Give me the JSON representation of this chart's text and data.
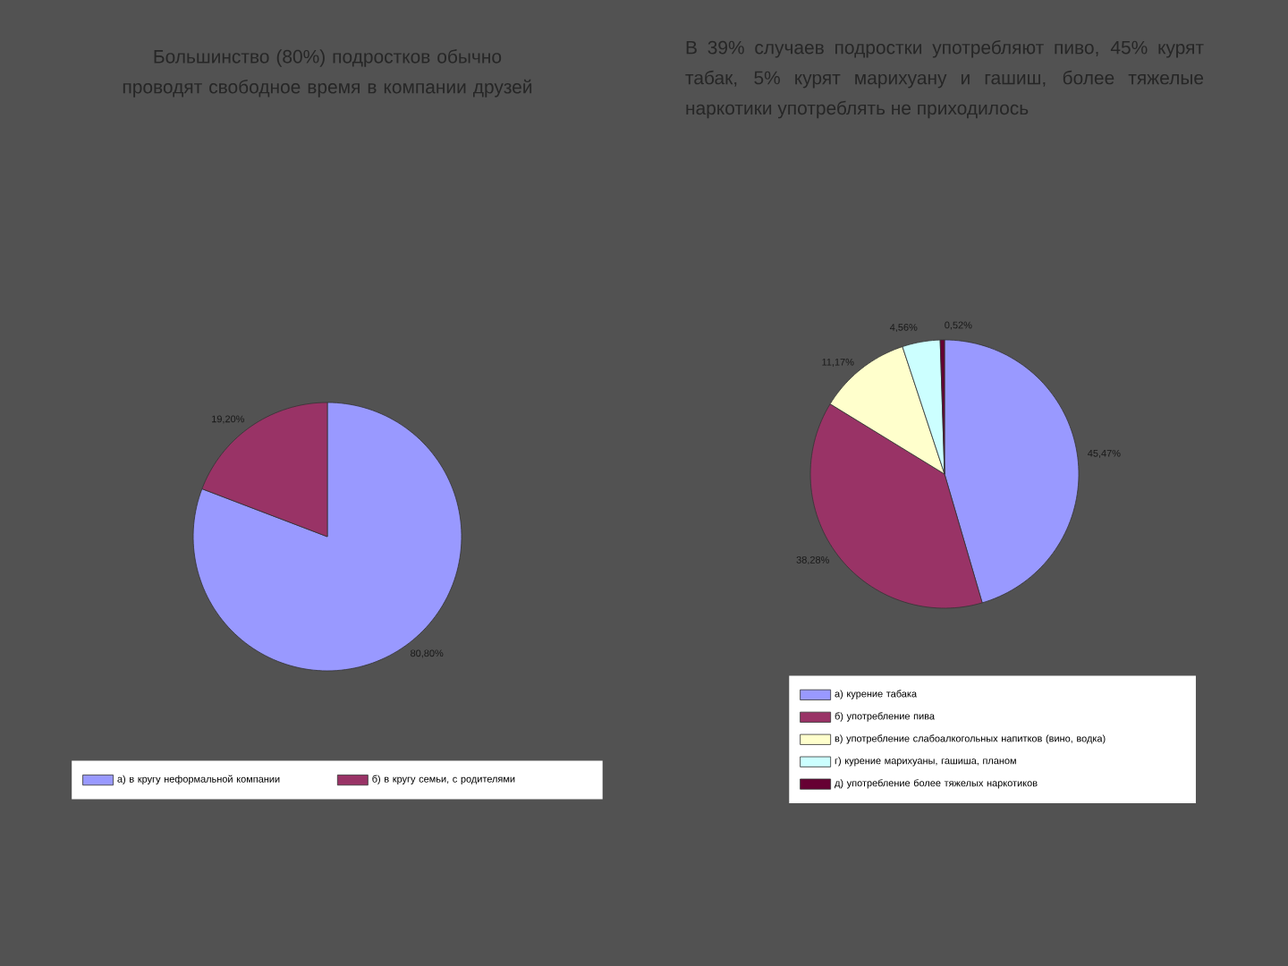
{
  "chart_data": [
    {
      "type": "pie",
      "title": "Большинство (80%) подростков обычно проводят свободное время в компании друзей",
      "categories": [
        "а) в кругу неформальной компании",
        "б) в кругу семьи, с родителями"
      ],
      "values": [
        80.8,
        19.2
      ],
      "value_labels": [
        "80,80%",
        "19,20%"
      ],
      "colors": [
        "#9999ff",
        "#993366"
      ],
      "legend": "bottom"
    },
    {
      "type": "pie",
      "title": "В 39% случаев подростки употребляют пиво, 45% курят табак, 5% курят марихуану и гашиш, более тяжелые наркотики употреблять не приходилось",
      "categories": [
        "а) курение табака",
        "б) употребление пива",
        "в) употребление слабоалкогольных напитков (вино, водка)",
        "г) курение марихуаны, гашиша, планом",
        "д) употребление более тяжелых наркотиков"
      ],
      "values": [
        45.47,
        38.28,
        11.17,
        4.56,
        0.52
      ],
      "value_labels": [
        "45,47%",
        "38,28%",
        "11,17%",
        "4,56%",
        "0,52%"
      ],
      "colors": [
        "#9999ff",
        "#993366",
        "#ffffcc",
        "#ccffff",
        "#660033"
      ],
      "legend": "bottom"
    }
  ]
}
